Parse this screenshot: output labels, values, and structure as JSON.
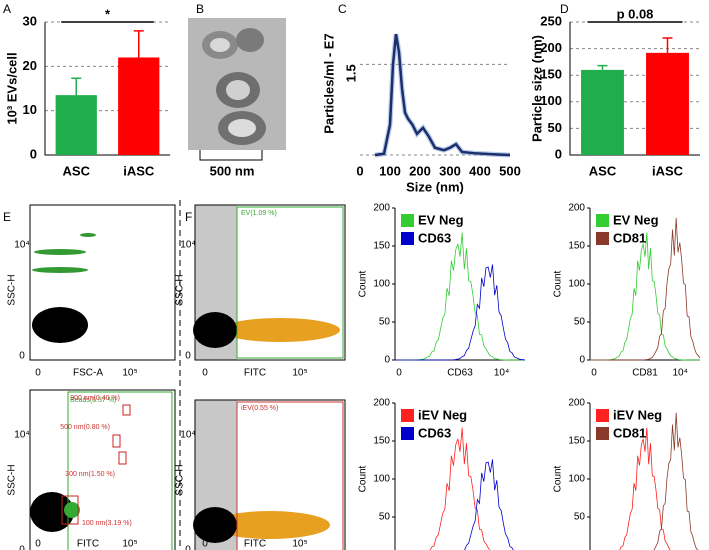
{
  "chart_data": [
    {
      "type": "bar",
      "panel": "A",
      "ylabel": "10³ EVs/cell",
      "categories": [
        "ASC",
        "iASC"
      ],
      "values": [
        13.5,
        22
      ],
      "errors": [
        3.8,
        6
      ],
      "colors": [
        "#1fae4b",
        "#ff0000"
      ],
      "ylim": [
        0,
        30
      ],
      "yticks": [
        0,
        10,
        20,
        30
      ],
      "grid": true,
      "annotation": "*"
    },
    {
      "type": "line",
      "panel": "C",
      "xlabel": "Size (nm)",
      "ylabel": "Particles/ml - E7",
      "x": [
        50,
        80,
        100,
        110,
        120,
        130,
        140,
        150,
        160,
        175,
        190,
        210,
        230,
        250,
        280,
        300,
        320,
        340,
        380,
        450,
        500
      ],
      "values": [
        0,
        0.02,
        0.5,
        1.5,
        2.0,
        1.7,
        1.1,
        0.7,
        0.6,
        0.5,
        0.35,
        0.45,
        0.3,
        0.12,
        0.08,
        0.12,
        0.18,
        0.05,
        0.03,
        0.01,
        0
      ],
      "color": "#1a2f6b",
      "xlim": [
        0,
        500
      ],
      "xticks": [
        0,
        100,
        200,
        300,
        400,
        500
      ],
      "ylim": [
        0,
        2.2
      ],
      "yticks": [
        1.5
      ],
      "grid": true
    },
    {
      "type": "bar",
      "panel": "D",
      "ylabel": "Particle size (nm)",
      "categories": [
        "ASC",
        "iASC"
      ],
      "values": [
        160,
        192
      ],
      "errors": [
        8,
        28
      ],
      "colors": [
        "#1fae4b",
        "#ff0000"
      ],
      "ylim": [
        0,
        250
      ],
      "yticks": [
        0,
        50,
        100,
        150,
        200,
        250
      ],
      "grid": true,
      "annotation": "p 0.08"
    }
  ],
  "image_panel": {
    "panel": "B",
    "scale": "500 nm"
  },
  "cytometry": {
    "panels": [
      "E",
      "F"
    ],
    "scatter": {
      "ylabel": "SSC-H",
      "ytop": "10⁴",
      "zero": "0",
      "xtop": "10⁵",
      "xlabel_fsc": "FSC-A",
      "xlabel_fitc": "FITC",
      "gates": [
        "EV(1.09 %)",
        "iEV(0.55 %)",
        "Beads(6.57 %)",
        "900 nm(0.40 %)",
        "500 nm(0.80 %)",
        "300 nm(1.50 %)",
        "100 nm(3.19 %)"
      ]
    },
    "histograms": [
      {
        "markers": "CD63",
        "legend": [
          {
            "name": "EV Neg",
            "color": "#33cc33"
          },
          {
            "name": "CD63",
            "color": "#0000cc"
          }
        ]
      },
      {
        "markers": "CD81",
        "legend": [
          {
            "name": "EV Neg",
            "color": "#33cc33"
          },
          {
            "name": "CD81",
            "color": "#8b3a2a"
          }
        ]
      },
      {
        "markers": "CD63",
        "legend": [
          {
            "name": "iEV Neg",
            "color": "#ff2020"
          },
          {
            "name": "CD63",
            "color": "#0000cc"
          }
        ]
      },
      {
        "markers": "CD81",
        "legend": [
          {
            "name": "iEV Neg",
            "color": "#ff2020"
          },
          {
            "name": "CD81",
            "color": "#8b3a2a"
          }
        ]
      }
    ],
    "hist_ylabel": "Count",
    "hist_ylim": [
      0,
      200
    ],
    "hist_yticks": [
      0,
      50,
      100,
      150,
      200
    ],
    "hist_x0": "0",
    "hist_xtop": "10⁴"
  }
}
